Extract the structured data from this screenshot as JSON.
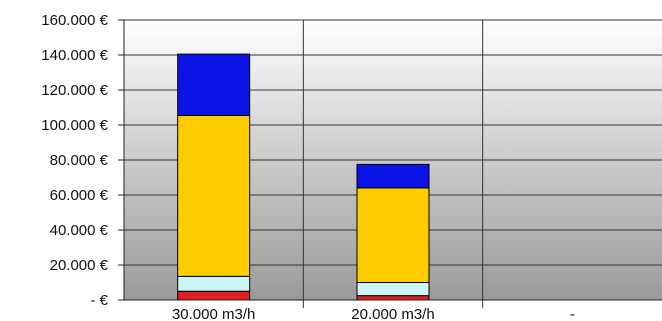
{
  "chart_data": {
    "type": "bar",
    "stacked": true,
    "categories": [
      "30.000 m3/h",
      "20.000 m3/h",
      "-"
    ],
    "series": [
      {
        "color": "#e02020",
        "values": [
          5000,
          2500,
          0
        ]
      },
      {
        "color": "#ccf5f5",
        "values": [
          8500,
          7500,
          0
        ]
      },
      {
        "color": "#ffcc00",
        "values": [
          92000,
          54000,
          0
        ]
      },
      {
        "color": "#0a14e6",
        "values": [
          35000,
          13500,
          0
        ]
      }
    ],
    "ylim": [
      0,
      160000
    ],
    "y_ticks": [
      {
        "value": 0,
        "label": "-       €"
      },
      {
        "value": 20000,
        "label": "20.000 €"
      },
      {
        "value": 40000,
        "label": "40.000 €"
      },
      {
        "value": 60000,
        "label": "60.000 €"
      },
      {
        "value": 80000,
        "label": "80.000 €"
      },
      {
        "value": 100000,
        "label": "100.000 €"
      },
      {
        "value": 120000,
        "label": "120.000 €"
      },
      {
        "value": 140000,
        "label": "140.000 €"
      },
      {
        "value": 160000,
        "label": "160.000 €"
      }
    ],
    "grid": true,
    "background": "vertical gradient white to grey",
    "colors": {
      "grid": "#333333",
      "axis": "#222222"
    }
  }
}
